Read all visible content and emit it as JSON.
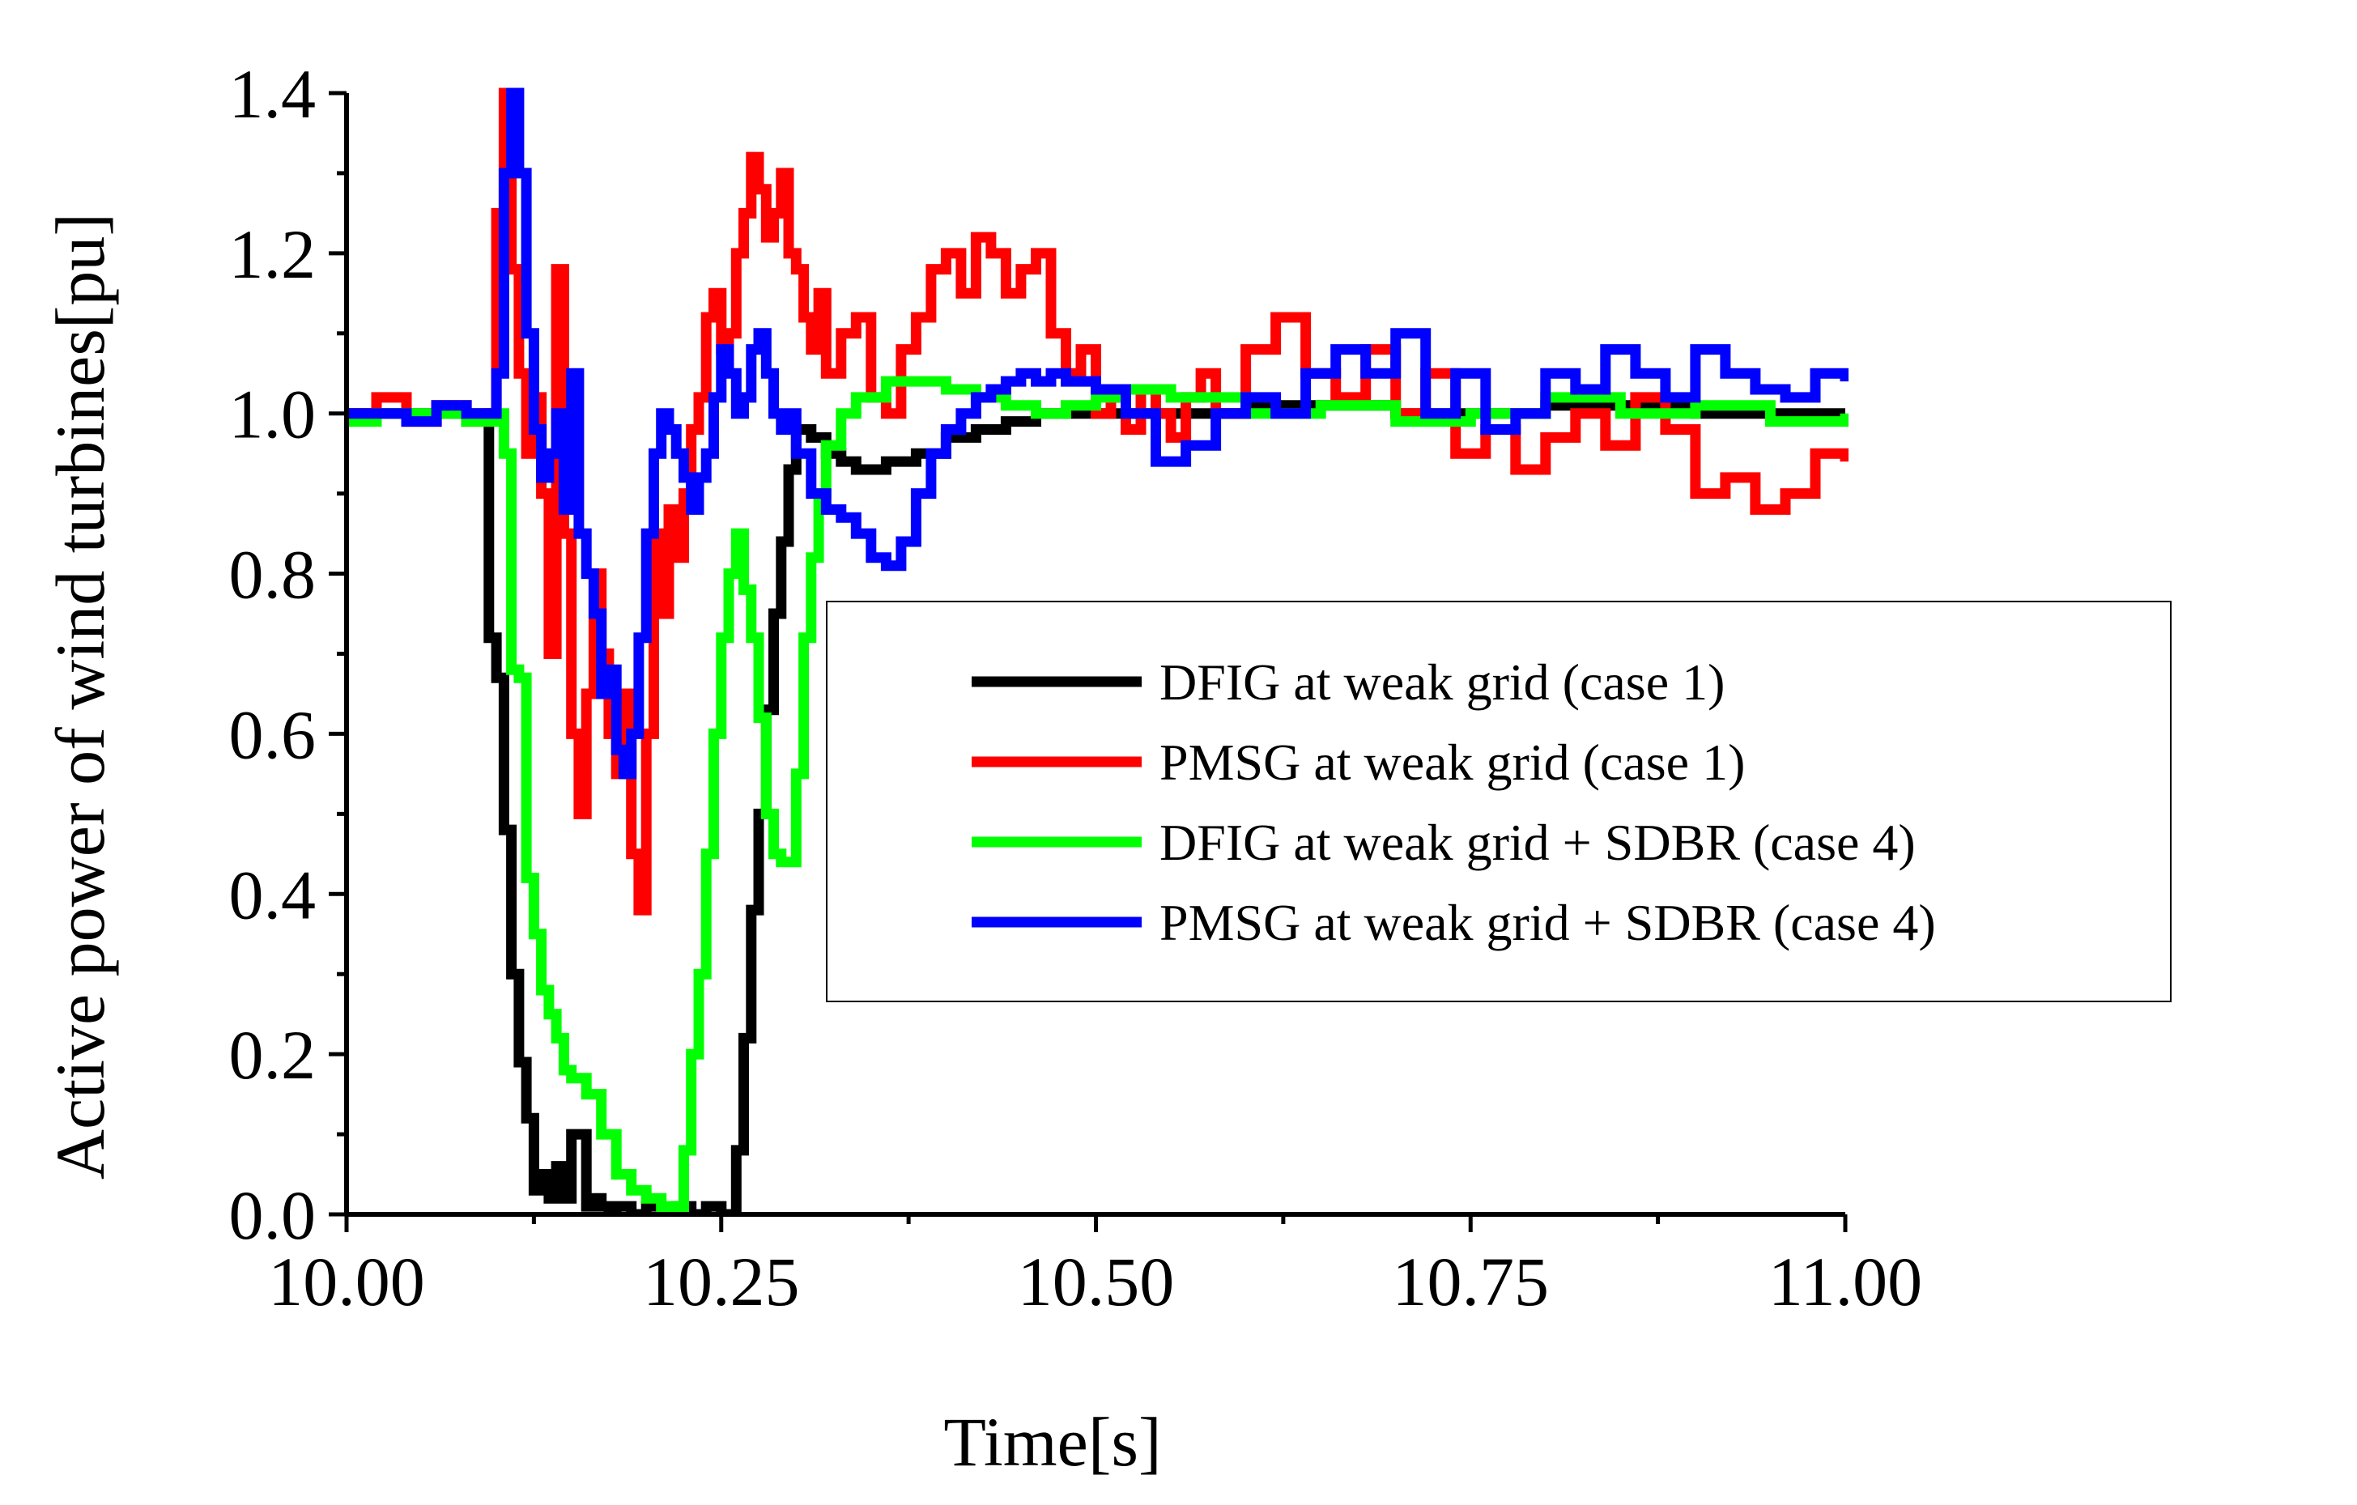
{
  "chart_data": {
    "type": "line",
    "xlabel": "Time[s]",
    "ylabel": "Active power of wind turbines[pu]",
    "xlim": [
      10.0,
      11.0
    ],
    "ylim": [
      0.0,
      1.4
    ],
    "xticks": [
      10.0,
      10.25,
      10.5,
      10.75,
      11.0
    ],
    "xtick_labels": [
      "10.00",
      "10.25",
      "10.50",
      "10.75",
      "11.00"
    ],
    "yticks": [
      0.0,
      0.2,
      0.4,
      0.6,
      0.8,
      1.0,
      1.2,
      1.4
    ],
    "ytick_labels": [
      "0.0",
      "0.2",
      "0.4",
      "0.6",
      "0.8",
      "1.0",
      "1.2",
      "1.4"
    ],
    "legend_position": "center-right",
    "series": [
      {
        "name": "DFIG at weak grid (case 1)",
        "color": "#000000",
        "x": [
          10.0,
          10.09,
          10.095,
          10.1,
          10.105,
          10.11,
          10.115,
          10.12,
          10.125,
          10.13,
          10.135,
          10.14,
          10.145,
          10.15,
          10.155,
          10.16,
          10.165,
          10.17,
          10.175,
          10.18,
          10.19,
          10.2,
          10.21,
          10.22,
          10.23,
          10.24,
          10.25,
          10.255,
          10.26,
          10.265,
          10.27,
          10.275,
          10.28,
          10.285,
          10.29,
          10.295,
          10.3,
          10.31,
          10.32,
          10.33,
          10.34,
          10.35,
          10.36,
          10.38,
          10.4,
          10.42,
          10.44,
          10.46,
          10.48,
          10.5,
          10.55,
          10.6,
          10.7,
          10.8,
          10.9,
          11.0
        ],
        "y": [
          1.0,
          1.0,
          0.72,
          0.67,
          0.48,
          0.3,
          0.19,
          0.12,
          0.03,
          0.05,
          0.02,
          0.06,
          0.02,
          0.1,
          0.1,
          0.01,
          0.02,
          0.01,
          0.0,
          0.01,
          0.0,
          0.01,
          0.0,
          0.01,
          0.0,
          0.01,
          0.0,
          0.0,
          0.08,
          0.22,
          0.38,
          0.5,
          0.63,
          0.75,
          0.84,
          0.93,
          0.98,
          0.97,
          0.95,
          0.94,
          0.93,
          0.93,
          0.94,
          0.95,
          0.97,
          0.98,
          0.99,
          1.0,
          1.0,
          1.0,
          1.0,
          1.01,
          1.0,
          1.01,
          1.0,
          1.0
        ]
      },
      {
        "name": "PMSG at weak grid (case 1)",
        "color": "#ff0000",
        "x": [
          10.0,
          10.02,
          10.04,
          10.06,
          10.08,
          10.095,
          10.1,
          10.105,
          10.11,
          10.115,
          10.12,
          10.125,
          10.13,
          10.135,
          10.14,
          10.145,
          10.15,
          10.155,
          10.16,
          10.165,
          10.17,
          10.175,
          10.18,
          10.185,
          10.19,
          10.195,
          10.2,
          10.205,
          10.21,
          10.215,
          10.22,
          10.225,
          10.23,
          10.235,
          10.24,
          10.245,
          10.25,
          10.255,
          10.26,
          10.265,
          10.27,
          10.275,
          10.28,
          10.285,
          10.29,
          10.295,
          10.3,
          10.305,
          10.31,
          10.315,
          10.32,
          10.33,
          10.34,
          10.35,
          10.36,
          10.37,
          10.38,
          10.39,
          10.4,
          10.41,
          10.42,
          10.43,
          10.44,
          10.45,
          10.46,
          10.47,
          10.48,
          10.49,
          10.5,
          10.51,
          10.52,
          10.53,
          10.54,
          10.55,
          10.56,
          10.57,
          10.58,
          10.6,
          10.62,
          10.64,
          10.66,
          10.68,
          10.7,
          10.72,
          10.74,
          10.76,
          10.78,
          10.8,
          10.82,
          10.84,
          10.86,
          10.88,
          10.9,
          10.92,
          10.94,
          10.96,
          10.98,
          11.0
        ],
        "y": [
          1.0,
          1.02,
          0.99,
          1.01,
          0.99,
          1.0,
          1.25,
          1.4,
          1.18,
          1.05,
          0.95,
          1.02,
          0.9,
          0.7,
          1.18,
          0.85,
          0.6,
          0.5,
          0.65,
          0.8,
          0.7,
          0.6,
          0.55,
          0.65,
          0.45,
          0.38,
          0.6,
          0.85,
          0.75,
          0.88,
          0.82,
          0.9,
          0.98,
          1.02,
          1.12,
          1.15,
          1.08,
          1.1,
          1.2,
          1.25,
          1.32,
          1.28,
          1.22,
          1.25,
          1.3,
          1.2,
          1.18,
          1.12,
          1.08,
          1.15,
          1.05,
          1.1,
          1.12,
          1.02,
          1.0,
          1.08,
          1.12,
          1.18,
          1.2,
          1.15,
          1.22,
          1.2,
          1.15,
          1.18,
          1.2,
          1.1,
          1.05,
          1.08,
          1.0,
          1.02,
          0.98,
          1.03,
          1.0,
          0.97,
          1.02,
          1.05,
          1.0,
          1.08,
          1.12,
          1.05,
          1.02,
          1.08,
          1.0,
          1.05,
          0.95,
          0.98,
          0.93,
          0.97,
          1.0,
          0.96,
          1.02,
          0.98,
          0.9,
          0.92,
          0.88,
          0.9,
          0.95,
          0.94
        ]
      },
      {
        "name": "DFIG at weak grid + SDBR (case 4)",
        "color": "#00ff00",
        "x": [
          10.0,
          10.02,
          10.04,
          10.06,
          10.08,
          10.1,
          10.105,
          10.11,
          10.115,
          10.12,
          10.125,
          10.13,
          10.135,
          10.14,
          10.145,
          10.15,
          10.16,
          10.17,
          10.18,
          10.19,
          10.2,
          10.21,
          10.215,
          10.22,
          10.225,
          10.23,
          10.235,
          10.24,
          10.245,
          10.25,
          10.255,
          10.26,
          10.265,
          10.27,
          10.275,
          10.28,
          10.285,
          10.29,
          10.3,
          10.305,
          10.31,
          10.315,
          10.32,
          10.33,
          10.34,
          10.36,
          10.38,
          10.4,
          10.42,
          10.44,
          10.46,
          10.48,
          10.5,
          10.52,
          10.55,
          10.6,
          10.65,
          10.7,
          10.75,
          10.8,
          10.85,
          10.9,
          10.95,
          11.0
        ],
        "y": [
          0.99,
          1.0,
          1.0,
          1.0,
          0.99,
          1.0,
          0.95,
          0.68,
          0.67,
          0.42,
          0.35,
          0.28,
          0.25,
          0.22,
          0.18,
          0.17,
          0.15,
          0.1,
          0.05,
          0.03,
          0.02,
          0.0,
          0.01,
          0.0,
          0.08,
          0.2,
          0.3,
          0.45,
          0.6,
          0.72,
          0.8,
          0.85,
          0.78,
          0.72,
          0.62,
          0.5,
          0.45,
          0.44,
          0.55,
          0.72,
          0.82,
          0.9,
          0.96,
          1.0,
          1.02,
          1.04,
          1.04,
          1.03,
          1.02,
          1.01,
          1.0,
          1.01,
          1.02,
          1.03,
          1.02,
          1.0,
          1.01,
          0.99,
          1.0,
          1.02,
          1.0,
          1.01,
          0.99,
          1.0
        ]
      },
      {
        "name": "PMSG at weak grid + SDBR (case 4)",
        "color": "#0000ff",
        "x": [
          10.0,
          10.02,
          10.04,
          10.06,
          10.08,
          10.1,
          10.105,
          10.11,
          10.115,
          10.12,
          10.125,
          10.13,
          10.135,
          10.14,
          10.145,
          10.15,
          10.155,
          10.16,
          10.165,
          10.17,
          10.175,
          10.18,
          10.185,
          10.19,
          10.195,
          10.2,
          10.205,
          10.21,
          10.215,
          10.22,
          10.225,
          10.23,
          10.235,
          10.24,
          10.245,
          10.25,
          10.255,
          10.26,
          10.265,
          10.27,
          10.275,
          10.28,
          10.285,
          10.29,
          10.295,
          10.3,
          10.31,
          10.32,
          10.33,
          10.34,
          10.35,
          10.36,
          10.37,
          10.38,
          10.39,
          10.4,
          10.41,
          10.42,
          10.43,
          10.44,
          10.45,
          10.46,
          10.47,
          10.48,
          10.5,
          10.52,
          10.54,
          10.56,
          10.58,
          10.6,
          10.62,
          10.64,
          10.66,
          10.68,
          10.7,
          10.72,
          10.74,
          10.76,
          10.78,
          10.8,
          10.82,
          10.84,
          10.86,
          10.88,
          10.9,
          10.92,
          10.94,
          10.96,
          10.98,
          11.0
        ],
        "y": [
          1.0,
          1.0,
          0.99,
          1.01,
          1.0,
          1.05,
          1.3,
          1.4,
          1.3,
          1.1,
          0.98,
          0.92,
          0.95,
          1.0,
          0.88,
          1.05,
          0.85,
          0.8,
          0.75,
          0.65,
          0.68,
          0.58,
          0.55,
          0.6,
          0.72,
          0.85,
          0.95,
          1.0,
          0.98,
          0.95,
          0.92,
          0.88,
          0.92,
          0.95,
          1.02,
          1.08,
          1.05,
          1.0,
          1.02,
          1.08,
          1.1,
          1.05,
          1.0,
          0.98,
          1.0,
          0.95,
          0.9,
          0.88,
          0.87,
          0.85,
          0.82,
          0.81,
          0.84,
          0.9,
          0.95,
          0.98,
          1.0,
          1.02,
          1.03,
          1.04,
          1.05,
          1.04,
          1.05,
          1.04,
          1.03,
          1.0,
          0.94,
          0.96,
          1.0,
          1.02,
          1.0,
          1.05,
          1.08,
          1.05,
          1.1,
          1.0,
          1.05,
          0.98,
          1.0,
          1.05,
          1.03,
          1.08,
          1.05,
          1.02,
          1.08,
          1.05,
          1.03,
          1.02,
          1.05,
          1.04
        ]
      }
    ]
  }
}
